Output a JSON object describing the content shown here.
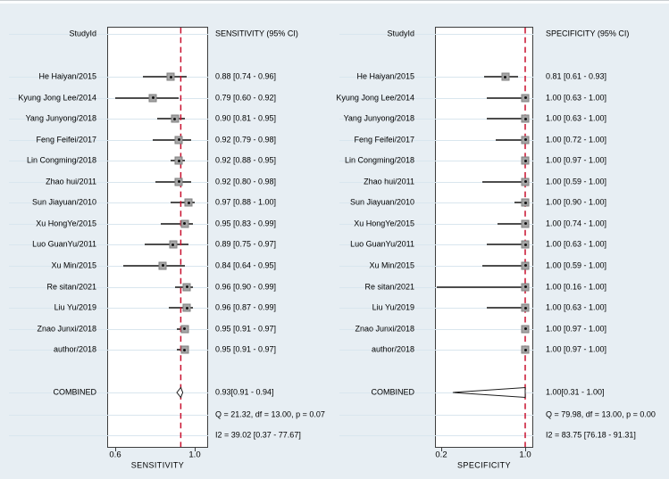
{
  "colors": {
    "background": "#e7eef3",
    "plot_background": "#ffffff",
    "grid_line": "#d9e6ee",
    "box_border": "#3d3d3d",
    "reference_line": "#c8102e",
    "ci_line": "#4d4d4d",
    "marker_fill": "#a6a6a6",
    "marker_border": "#7f7f7f",
    "marker_dot": "#111111",
    "combined_fill": "#ffffff",
    "combined_border": "#1a1a1a",
    "text": "#000000"
  },
  "chart_data": [
    {
      "type": "forest",
      "panel": "sensitivity",
      "id_header": "StudyId",
      "estimate_header": "SENSITIVITY (95% CI)",
      "xlabel": "SENSITIVITY",
      "xlim": [
        0.56,
        1.07
      ],
      "xticks": [
        {
          "value": 0.6,
          "label": "0.6"
        },
        {
          "value": 1.0,
          "label": "1.0"
        }
      ],
      "reference_line": 0.93,
      "grid": true,
      "studies": [
        {
          "id": "He Haiyan/2015",
          "estimate": 0.88,
          "ci_low": 0.74,
          "ci_high": 0.96,
          "text": "0.88 [0.74 - 0.96]"
        },
        {
          "id": "Kyung Jong Lee/2014",
          "estimate": 0.79,
          "ci_low": 0.6,
          "ci_high": 0.92,
          "text": "0.79 [0.60 - 0.92]"
        },
        {
          "id": "Yang Junyong/2018",
          "estimate": 0.9,
          "ci_low": 0.81,
          "ci_high": 0.95,
          "text": "0.90 [0.81 - 0.95]"
        },
        {
          "id": "Feng Feifei/2017",
          "estimate": 0.92,
          "ci_low": 0.79,
          "ci_high": 0.98,
          "text": "0.92 [0.79 - 0.98]"
        },
        {
          "id": "Lin Congming/2018",
          "estimate": 0.92,
          "ci_low": 0.88,
          "ci_high": 0.95,
          "text": "0.92 [0.88 - 0.95]"
        },
        {
          "id": "Zhao hui/2011",
          "estimate": 0.92,
          "ci_low": 0.8,
          "ci_high": 0.98,
          "text": "0.92 [0.80 - 0.98]"
        },
        {
          "id": "Sun Jiayuan/2010",
          "estimate": 0.97,
          "ci_low": 0.88,
          "ci_high": 1.0,
          "text": "0.97 [0.88 - 1.00]"
        },
        {
          "id": "Xu HongYe/2015",
          "estimate": 0.95,
          "ci_low": 0.83,
          "ci_high": 0.99,
          "text": "0.95 [0.83 - 0.99]"
        },
        {
          "id": "Luo GuanYu/2011",
          "estimate": 0.89,
          "ci_low": 0.75,
          "ci_high": 0.97,
          "text": "0.89 [0.75 - 0.97]"
        },
        {
          "id": "Xu Min/2015",
          "estimate": 0.84,
          "ci_low": 0.64,
          "ci_high": 0.95,
          "text": "0.84 [0.64 - 0.95]"
        },
        {
          "id": "Re sitan/2021",
          "estimate": 0.96,
          "ci_low": 0.9,
          "ci_high": 0.99,
          "text": "0.96 [0.90 - 0.99]"
        },
        {
          "id": "Liu Yu/2019",
          "estimate": 0.96,
          "ci_low": 0.87,
          "ci_high": 0.99,
          "text": "0.96 [0.87 - 0.99]"
        },
        {
          "id": "Znao Junxi/2018",
          "estimate": 0.95,
          "ci_low": 0.91,
          "ci_high": 0.97,
          "text": "0.95 [0.91 - 0.97]"
        },
        {
          "id": "author/2018",
          "estimate": 0.95,
          "ci_low": 0.91,
          "ci_high": 0.97,
          "text": "0.95 [0.91 - 0.97]"
        }
      ],
      "combined": {
        "label": "COMBINED",
        "estimate": 0.93,
        "ci_low": 0.91,
        "ci_high": 0.94,
        "text": "0.93[0.91 - 0.94]"
      },
      "heterogeneity_q": "Q = 21.32, df = 13.00, p = 0.07",
      "i_squared": "I2 = 39.02 [0.37 - 77.67]"
    },
    {
      "type": "forest",
      "panel": "specificity",
      "id_header": "StudyId",
      "estimate_header": "SPECIFICITY (95% CI)",
      "xlabel": "SPECIFICITY",
      "xlim": [
        0.13,
        1.08
      ],
      "xticks": [
        {
          "value": 0.2,
          "label": "0.2"
        },
        {
          "value": 1.0,
          "label": "1.0"
        }
      ],
      "reference_line": 1.0,
      "grid": true,
      "studies": [
        {
          "id": "He Haiyan/2015",
          "estimate": 0.81,
          "ci_low": 0.61,
          "ci_high": 0.93,
          "text": "0.81 [0.61 - 0.93]"
        },
        {
          "id": "Kyung Jong Lee/2014",
          "estimate": 1.0,
          "ci_low": 0.63,
          "ci_high": 1.0,
          "text": "1.00 [0.63 - 1.00]"
        },
        {
          "id": "Yang Junyong/2018",
          "estimate": 1.0,
          "ci_low": 0.63,
          "ci_high": 1.0,
          "text": "1.00 [0.63 - 1.00]"
        },
        {
          "id": "Feng Feifei/2017",
          "estimate": 1.0,
          "ci_low": 0.72,
          "ci_high": 1.0,
          "text": "1.00 [0.72 - 1.00]"
        },
        {
          "id": "Lin Congming/2018",
          "estimate": 1.0,
          "ci_low": 0.97,
          "ci_high": 1.0,
          "text": "1.00 [0.97 - 1.00]"
        },
        {
          "id": "Zhao hui/2011",
          "estimate": 1.0,
          "ci_low": 0.59,
          "ci_high": 1.0,
          "text": "1.00 [0.59 - 1.00]"
        },
        {
          "id": "Sun Jiayuan/2010",
          "estimate": 1.0,
          "ci_low": 0.9,
          "ci_high": 1.0,
          "text": "1.00 [0.90 - 1.00]"
        },
        {
          "id": "Xu HongYe/2015",
          "estimate": 1.0,
          "ci_low": 0.74,
          "ci_high": 1.0,
          "text": "1.00 [0.74 - 1.00]"
        },
        {
          "id": "Luo GuanYu/2011",
          "estimate": 1.0,
          "ci_low": 0.63,
          "ci_high": 1.0,
          "text": "1.00 [0.63 - 1.00]"
        },
        {
          "id": "Xu Min/2015",
          "estimate": 1.0,
          "ci_low": 0.59,
          "ci_high": 1.0,
          "text": "1.00 [0.59 - 1.00]"
        },
        {
          "id": "Re sitan/2021",
          "estimate": 1.0,
          "ci_low": 0.16,
          "ci_high": 1.0,
          "text": "1.00 [0.16 - 1.00]"
        },
        {
          "id": "Liu Yu/2019",
          "estimate": 1.0,
          "ci_low": 0.63,
          "ci_high": 1.0,
          "text": "1.00 [0.63 - 1.00]"
        },
        {
          "id": "Znao Junxi/2018",
          "estimate": 1.0,
          "ci_low": 0.97,
          "ci_high": 1.0,
          "text": "1.00 [0.97 - 1.00]"
        },
        {
          "id": "author/2018",
          "estimate": 1.0,
          "ci_low": 0.97,
          "ci_high": 1.0,
          "text": "1.00 [0.97 - 1.00]"
        }
      ],
      "combined": {
        "label": "COMBINED",
        "estimate": 1.0,
        "ci_low": 0.31,
        "ci_high": 1.0,
        "text": "1.00[0.31 - 1.00]"
      },
      "heterogeneity_q": "Q = 79.98, df = 13.00, p = 0.00",
      "i_squared": "I2 = 83.75 [76.18 - 91.31]"
    }
  ]
}
